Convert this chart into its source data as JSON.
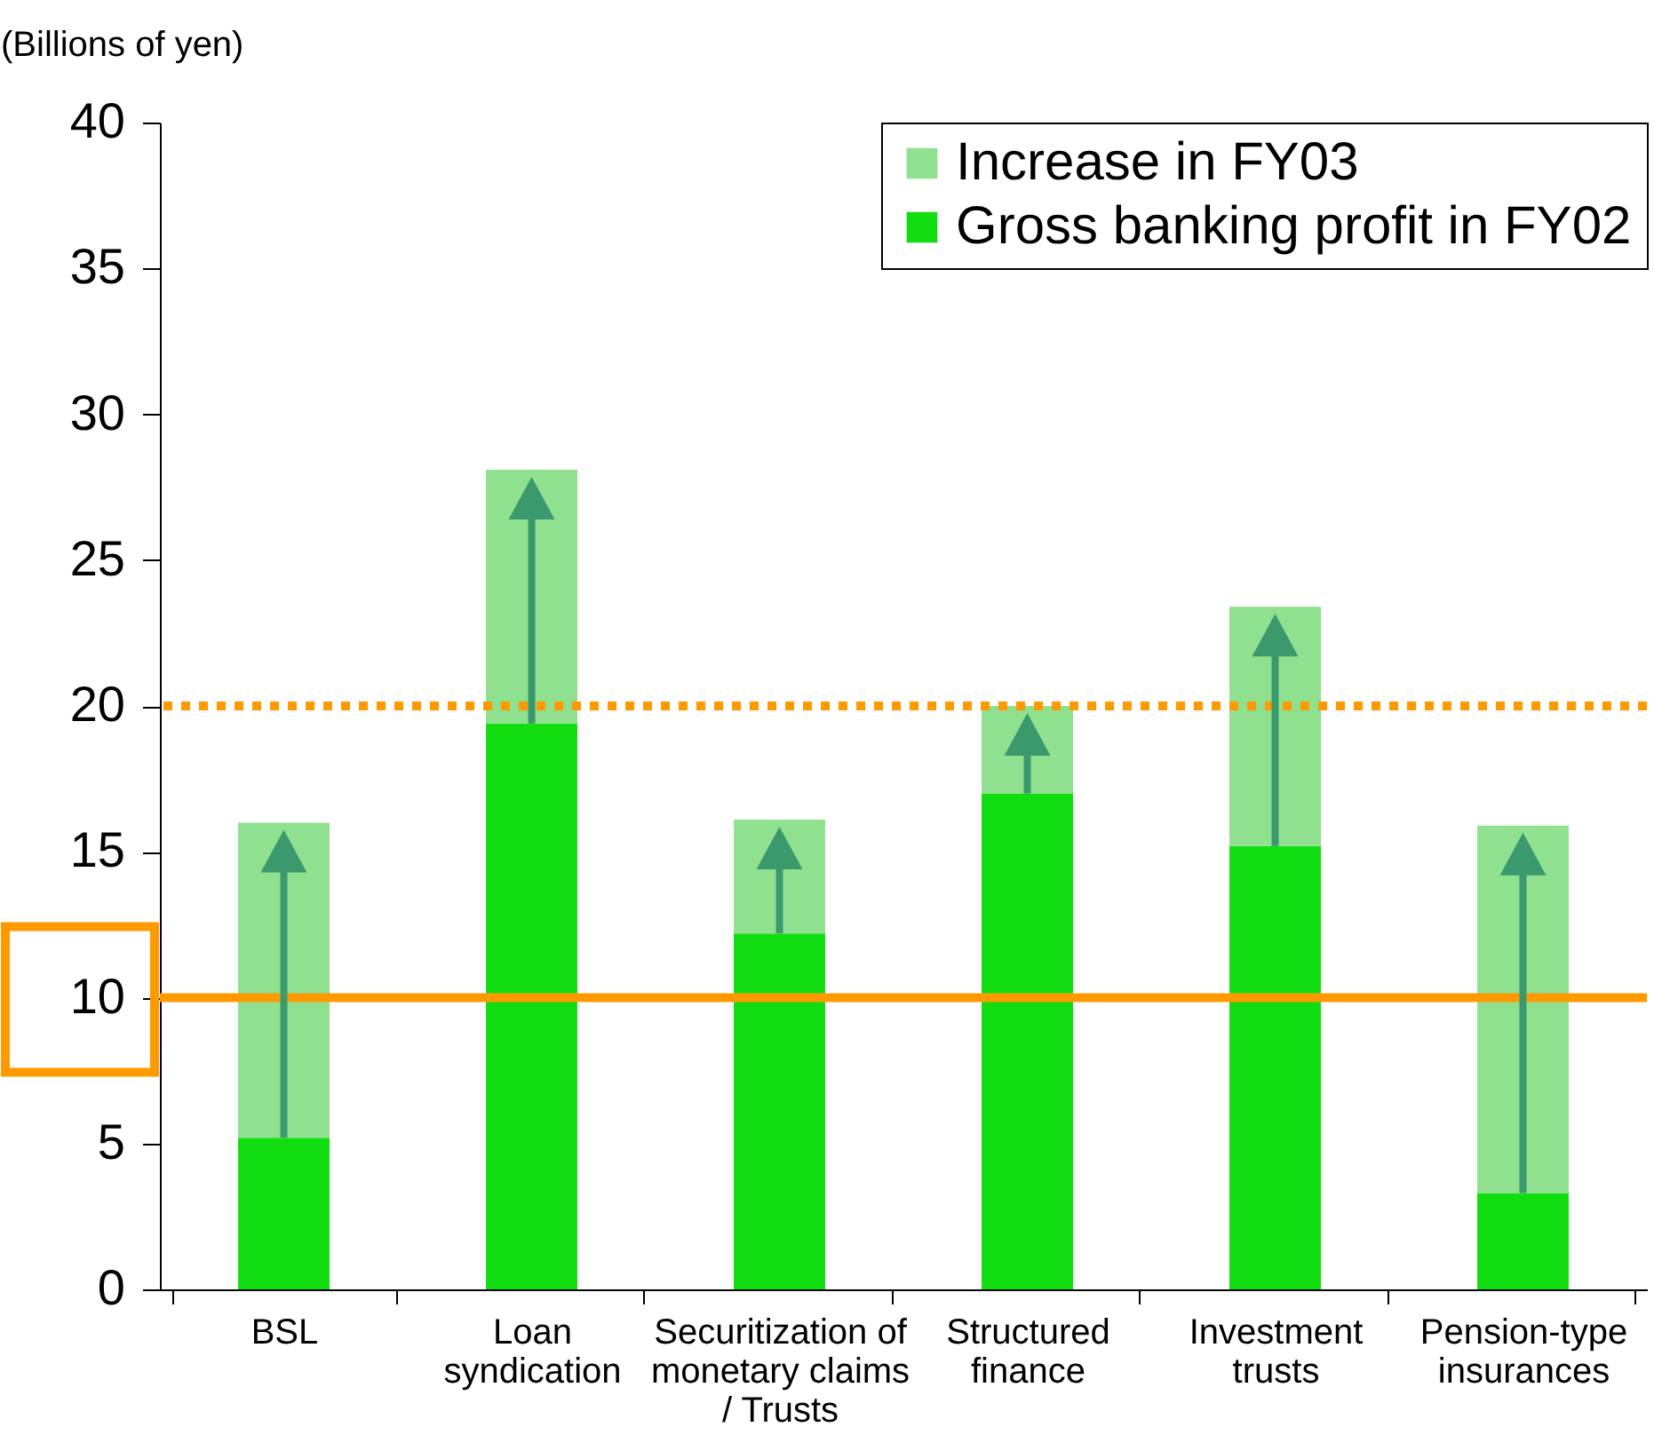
{
  "chart_data": {
    "type": "bar",
    "stacked": true,
    "ylabel": "(Billions of yen)",
    "categories": [
      "BSL",
      "Loan\nsyndication",
      "Securitization of\nmonetary claims\n/ Trusts",
      "Structured\nfinance",
      "Investment\ntrusts",
      "Pension-type\ninsurances"
    ],
    "series": [
      {
        "name": "Gross banking profit in FY02",
        "color": "#11dd11",
        "values": [
          5.2,
          19.4,
          12.2,
          17.0,
          15.2,
          3.3
        ]
      },
      {
        "name": "Increase in FY03",
        "color": "#8fe08f",
        "values": [
          10.8,
          8.7,
          3.9,
          3.0,
          8.2,
          12.6
        ]
      }
    ],
    "ylim": [
      0,
      40
    ],
    "yticks": [
      0,
      5,
      10,
      15,
      20,
      25,
      30,
      35,
      40
    ],
    "grid": false,
    "legend": "top right",
    "ref_lines": [
      {
        "axis": "y",
        "value": 20,
        "color": "#ff9900",
        "line_style": "dotted"
      },
      {
        "axis": "y",
        "value": 10,
        "color": "#ff9900",
        "line_style": "solid"
      }
    ]
  }
}
